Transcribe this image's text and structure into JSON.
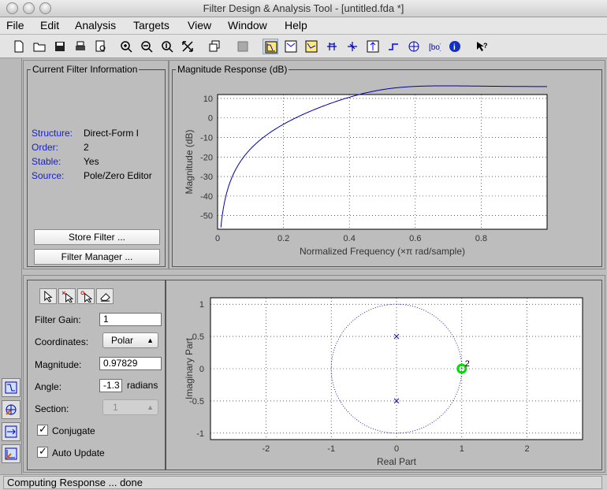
{
  "window": {
    "title": "Filter Design & Analysis Tool -  [untitled.fda *]"
  },
  "menubar": [
    "File",
    "Edit",
    "Analysis",
    "Targets",
    "View",
    "Window",
    "Help"
  ],
  "toolbar": {
    "icons": [
      "new-file-icon",
      "open-file-icon",
      "save-icon",
      "print-icon",
      "print-preview-icon",
      "zoom-in-icon",
      "zoom-x-icon",
      "zoom-y-icon",
      "full-view-icon",
      "new-figure-icon",
      "send-to-figure-icon",
      "magnitude-response-icon",
      "phase-response-icon",
      "magnitude-phase-icon",
      "group-delay-icon",
      "phase-delay-icon",
      "impulse-response-icon",
      "step-response-icon",
      "pole-zero-plot-icon",
      "filter-coefficients-icon",
      "filter-information-icon",
      "whats-this-help-icon"
    ]
  },
  "filter_info": {
    "legend": "Current Filter Information",
    "rows": [
      {
        "label": "Structure:",
        "value": "Direct-Form I"
      },
      {
        "label": "Order:",
        "value": "2"
      },
      {
        "label": "Stable:",
        "value": "Yes"
      },
      {
        "label": "Source:",
        "value": "Pole/Zero Editor"
      }
    ],
    "store_button": "Store Filter ...",
    "manager_button": "Filter Manager ..."
  },
  "magnitude_panel": {
    "legend": "Magnitude Response (dB)"
  },
  "pz_editor": {
    "gain_label": "Filter Gain:",
    "gain_value": "1",
    "coord_label": "Coordinates:",
    "coord_value": "Polar",
    "magnitude_label": "Magnitude:",
    "magnitude_value": "0.97829",
    "angle_label": "Angle:",
    "angle_value": "-1.3",
    "angle_unit": "radians",
    "section_label": "Section:",
    "section_value": "1",
    "conjugate_label": "Conjugate",
    "conjugate_checked": true,
    "autoupdate_label": "Auto Update",
    "autoupdate_checked": true
  },
  "status": {
    "text": "Computing Response ... done"
  },
  "chart_data": [
    {
      "type": "line",
      "title": "",
      "xlabel": "Normalized Frequency (×π rad/sample)",
      "ylabel": "Magnitude (dB)",
      "xlim": [
        0,
        1
      ],
      "ylim": [
        -57,
        12
      ],
      "xticks": [
        0,
        0.2,
        0.4,
        0.6,
        0.8
      ],
      "yticks": [
        10,
        0,
        -10,
        -20,
        -30,
        -40,
        -50
      ],
      "grid": true,
      "line_color": "#0000aa",
      "zero_count": 2,
      "zero_location": [
        1,
        0
      ],
      "pole_radius": 0.5,
      "gain_db_at_nyquist": 10.07
    },
    {
      "type": "scatter",
      "title": "",
      "xlabel": "Real Part",
      "ylabel": "Imaginary Part",
      "xlim": [
        -2.85,
        2.85
      ],
      "ylim": [
        -1.1,
        1.1
      ],
      "xticks": [
        -2,
        -1,
        0,
        1,
        2
      ],
      "yticks": [
        1,
        0.5,
        0,
        -0.5,
        -1
      ],
      "grid": true,
      "unit_circle": true,
      "poles": [
        [
          0,
          0.5
        ],
        [
          0,
          -0.5
        ]
      ],
      "zeros": [
        [
          1,
          0
        ]
      ],
      "zero_multiplicity_label": "2",
      "selected_color": "#00dd00"
    }
  ]
}
